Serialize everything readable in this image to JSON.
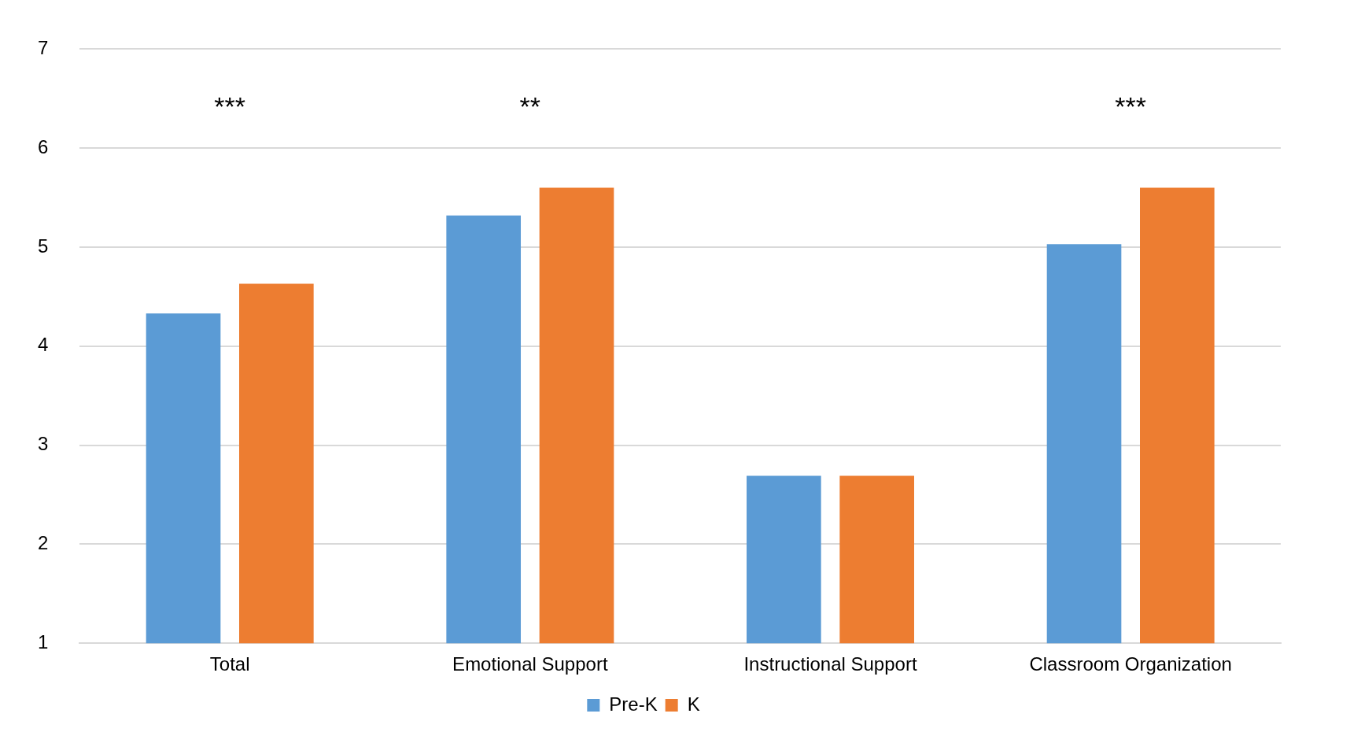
{
  "chart_data": {
    "type": "bar",
    "categories": [
      "Total",
      "Emotional Support",
      "Instructional Support",
      "Classroom Organization"
    ],
    "series": [
      {
        "name": "Pre-K",
        "color": "#5b9bd5",
        "values": [
          4.33,
          5.32,
          2.69,
          5.03
        ]
      },
      {
        "name": "K",
        "color": "#ed7d31",
        "values": [
          4.63,
          5.6,
          2.69,
          5.6
        ]
      }
    ],
    "ylim": [
      1,
      7
    ],
    "yticks": [
      1,
      2,
      3,
      4,
      5,
      6,
      7
    ],
    "grid": "y",
    "legend": "bottom",
    "annotations": [
      "***",
      "**",
      "***"
    ]
  }
}
